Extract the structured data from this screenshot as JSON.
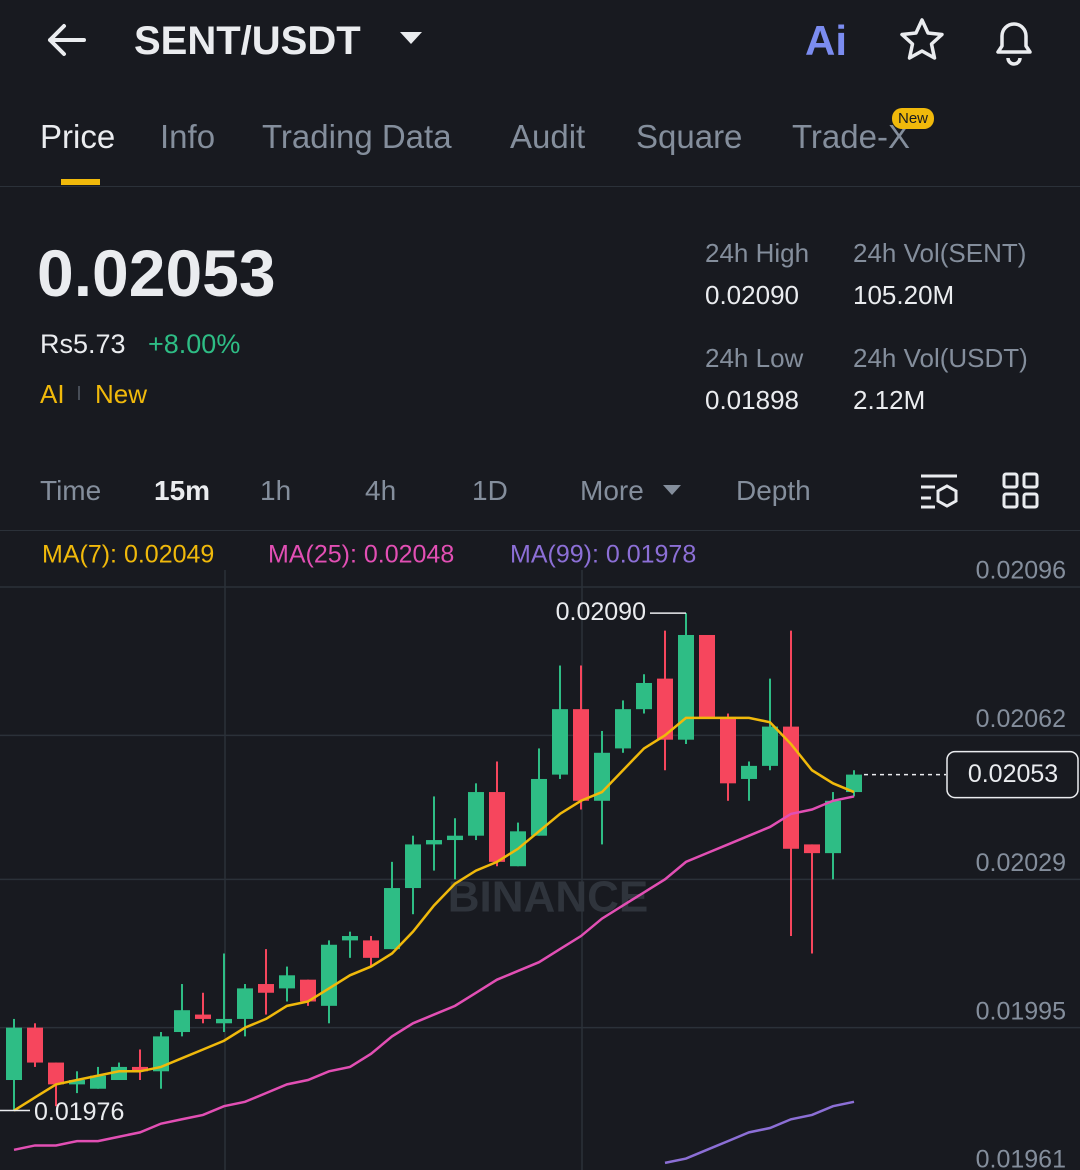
{
  "header": {
    "pair": "SENT/USDT",
    "ai_label": "Ai"
  },
  "tabs": [
    "Price",
    "Info",
    "Trading Data",
    "Audit",
    "Square",
    "Trade-X"
  ],
  "tab_badge": "New",
  "price": {
    "last": "0.02053",
    "local": "Rs5.73",
    "change": "+8.00%",
    "ai": "AI",
    "ai_new": "New"
  },
  "stats": [
    {
      "label": "24h High",
      "value": "0.02090"
    },
    {
      "label": "24h Vol(SENT)",
      "value": "105.20M"
    },
    {
      "label": "24h Low",
      "value": "0.01898"
    },
    {
      "label": "24h Vol(USDT)",
      "value": "2.12M"
    }
  ],
  "intervals": [
    "Time",
    "15m",
    "1h",
    "4h",
    "1D",
    "More",
    "Depth"
  ],
  "chart_data": {
    "type": "candlestick",
    "watermark": "BINANCE",
    "up_color": "#2ebd85",
    "down_color": "#f6465d",
    "open": [
      0.01983,
      0.01995,
      0.01987,
      0.01982,
      0.01981,
      0.01983,
      0.01986,
      0.01985,
      0.01994,
      0.01998,
      0.01996,
      0.01997,
      0.02005,
      0.02004,
      0.02006,
      0.02,
      0.02015,
      0.02015,
      0.02013,
      0.02027,
      0.02037,
      0.02038,
      0.02039,
      0.02049,
      0.02032,
      0.02039,
      0.02053,
      0.02068,
      0.02047,
      0.02059,
      0.02068,
      0.02075,
      0.02061,
      0.02085,
      0.02066,
      0.02052,
      0.02055,
      0.02064,
      0.02037,
      0.02035,
      0.02049
    ],
    "high": [
      0.01997,
      0.01996,
      0.01987,
      0.01985,
      0.01986,
      0.01987,
      0.0199,
      0.01994,
      0.02005,
      0.02003,
      0.02012,
      0.02005,
      0.02013,
      0.02009,
      0.02006,
      0.02015,
      0.02017,
      0.02016,
      0.02033,
      0.02039,
      0.02048,
      0.02043,
      0.02051,
      0.02056,
      0.02042,
      0.02059,
      0.02078,
      0.02078,
      0.02063,
      0.0207,
      0.02076,
      0.02086,
      0.0209,
      0.02085,
      0.02067,
      0.02056,
      0.02075,
      0.02086,
      0.02037,
      0.02049,
      0.02054
    ],
    "low": [
      0.01976,
      0.01986,
      0.01977,
      0.0198,
      0.01981,
      0.01983,
      0.01983,
      0.01981,
      0.01993,
      0.01996,
      0.01994,
      0.01993,
      0.01998,
      0.02001,
      0.02,
      0.01996,
      0.02011,
      0.02009,
      0.02013,
      0.02021,
      0.02031,
      0.02029,
      0.02038,
      0.02032,
      0.02032,
      0.02039,
      0.02052,
      0.02045,
      0.02037,
      0.02058,
      0.02067,
      0.02054,
      0.0206,
      0.02066,
      0.02047,
      0.02047,
      0.02054,
      0.02016,
      0.02012,
      0.02029,
      0.02048
    ],
    "close": [
      0.01995,
      0.01987,
      0.01982,
      0.01983,
      0.01984,
      0.01986,
      0.01985,
      0.01993,
      0.01999,
      0.01997,
      0.01997,
      0.02004,
      0.02003,
      0.02007,
      0.02001,
      0.02014,
      0.02016,
      0.02011,
      0.02027,
      0.02037,
      0.02038,
      0.02039,
      0.02049,
      0.02033,
      0.0204,
      0.02052,
      0.02068,
      0.02047,
      0.02058,
      0.02068,
      0.02074,
      0.02061,
      0.02085,
      0.02066,
      0.02051,
      0.02055,
      0.02064,
      0.02036,
      0.02035,
      0.02047,
      0.02053
    ],
    "series": [
      {
        "name": "MA(7): 0.02049",
        "color": "#f0b90b",
        "values": [
          0.01976,
          0.01979,
          0.01982,
          0.01983,
          0.01984,
          0.01985,
          0.01985,
          0.01986,
          0.01988,
          0.0199,
          0.01992,
          0.01995,
          0.01997,
          0.02,
          0.02001,
          0.02004,
          0.02007,
          0.02009,
          0.02012,
          0.02017,
          0.02023,
          0.02028,
          0.02031,
          0.02033,
          0.02036,
          0.0204,
          0.02044,
          0.02047,
          0.02049,
          0.02054,
          0.02059,
          0.02062,
          0.02066,
          0.02066,
          0.02066,
          0.02066,
          0.02065,
          0.0206,
          0.02054,
          0.02051,
          0.02049
        ]
      },
      {
        "name": "MA(25): 0.02048",
        "color": "#e24fb4",
        "values": [
          0.01967,
          0.01968,
          0.01968,
          0.01969,
          0.01969,
          0.0197,
          0.01971,
          0.01973,
          0.01974,
          0.01975,
          0.01977,
          0.01978,
          0.0198,
          0.01982,
          0.01983,
          0.01985,
          0.01986,
          0.01989,
          0.01993,
          0.01996,
          0.01998,
          0.02,
          0.02003,
          0.02006,
          0.02008,
          0.0201,
          0.02013,
          0.02016,
          0.0202,
          0.02023,
          0.02026,
          0.02029,
          0.02033,
          0.02035,
          0.02037,
          0.02039,
          0.02041,
          0.02044,
          0.02045,
          0.02047,
          0.02048
        ]
      },
      {
        "name": "MA(99): 0.01978",
        "color": "#8c6fd6",
        "values": [
          null,
          null,
          null,
          null,
          null,
          null,
          null,
          null,
          null,
          null,
          null,
          null,
          null,
          null,
          null,
          null,
          null,
          null,
          null,
          null,
          null,
          null,
          null,
          null,
          null,
          null,
          null,
          null,
          null,
          null,
          null,
          0.01964,
          0.01965,
          0.01967,
          0.01969,
          0.01971,
          0.01972,
          0.01974,
          0.01975,
          0.01977,
          0.01978
        ]
      }
    ],
    "ylim": [
      0.01961,
      0.02107
    ],
    "yticks": [
      0.02096,
      0.02062,
      0.02029,
      0.01995,
      0.01961
    ],
    "grid": true,
    "high_label": {
      "value": 0.0209,
      "label": "0.02090"
    },
    "low_label": {
      "value": 0.01976,
      "label": "0.01976"
    },
    "last_price": 0.02053
  }
}
